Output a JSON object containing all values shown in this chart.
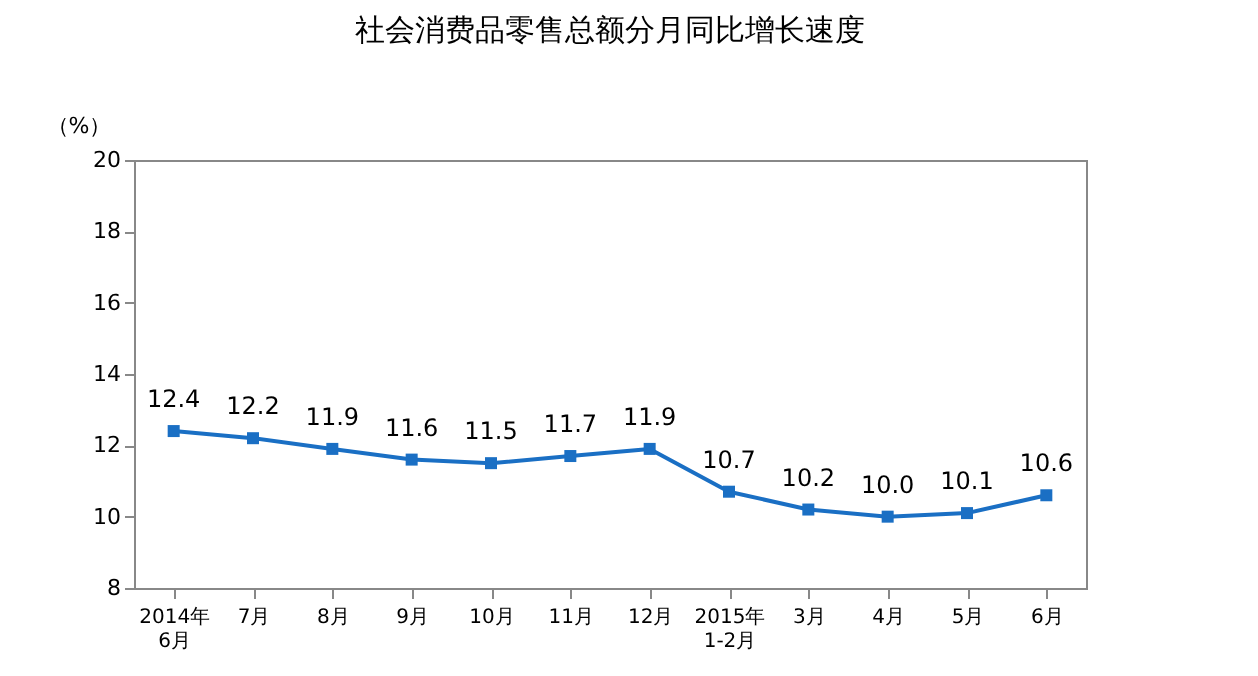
{
  "chart_data": {
    "type": "line",
    "title": "社会消费品零售总额分月同比增长速度",
    "ylabel": "（%）",
    "categories": [
      "2014年\n6月",
      "7月",
      "8月",
      "9月",
      "10月",
      "11月",
      "12月",
      "2015年\n1-2月",
      "3月",
      "4月",
      "5月",
      "6月"
    ],
    "series": [
      {
        "color": "#1a6fc4",
        "values": [
          12.4,
          12.2,
          11.9,
          11.6,
          11.5,
          11.7,
          11.9,
          10.7,
          10.2,
          10.0,
          10.1,
          10.6
        ]
      }
    ],
    "value_labels": [
      "12.4",
      "12.2",
      "11.9",
      "11.6",
      "11.5",
      "11.7",
      "11.9",
      "10.7",
      "10.2",
      "10.0",
      "10.1",
      "10.6"
    ],
    "ylim": [
      8,
      20
    ],
    "yticks": [
      8,
      10,
      12,
      14,
      16,
      18,
      20
    ],
    "marker": "square",
    "grid": false,
    "legend": false
  }
}
